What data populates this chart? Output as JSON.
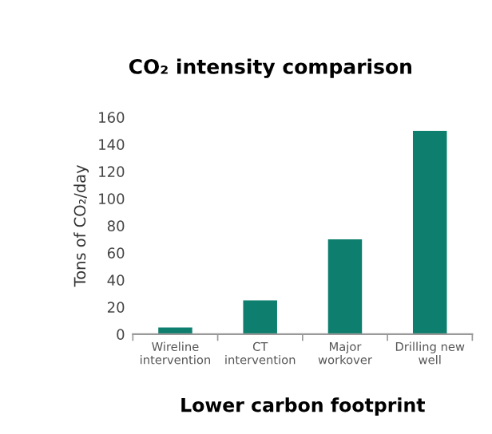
{
  "chart_data": {
    "type": "bar",
    "title": "CO₂ intensity comparison",
    "xlabel": "Lower carbon footprint",
    "ylabel": "Tons of CO₂/day",
    "categories": [
      "Wireline\nintervention",
      "CT\nintervention",
      "Major\nworkover",
      "Drilling new\nwell"
    ],
    "values": [
      5,
      25,
      70,
      150
    ],
    "color": "#0e7f6e",
    "ylim": [
      0,
      160
    ],
    "yticks": [
      0,
      20,
      40,
      60,
      80,
      100,
      120,
      140,
      160
    ],
    "grid": false,
    "legend": false
  }
}
